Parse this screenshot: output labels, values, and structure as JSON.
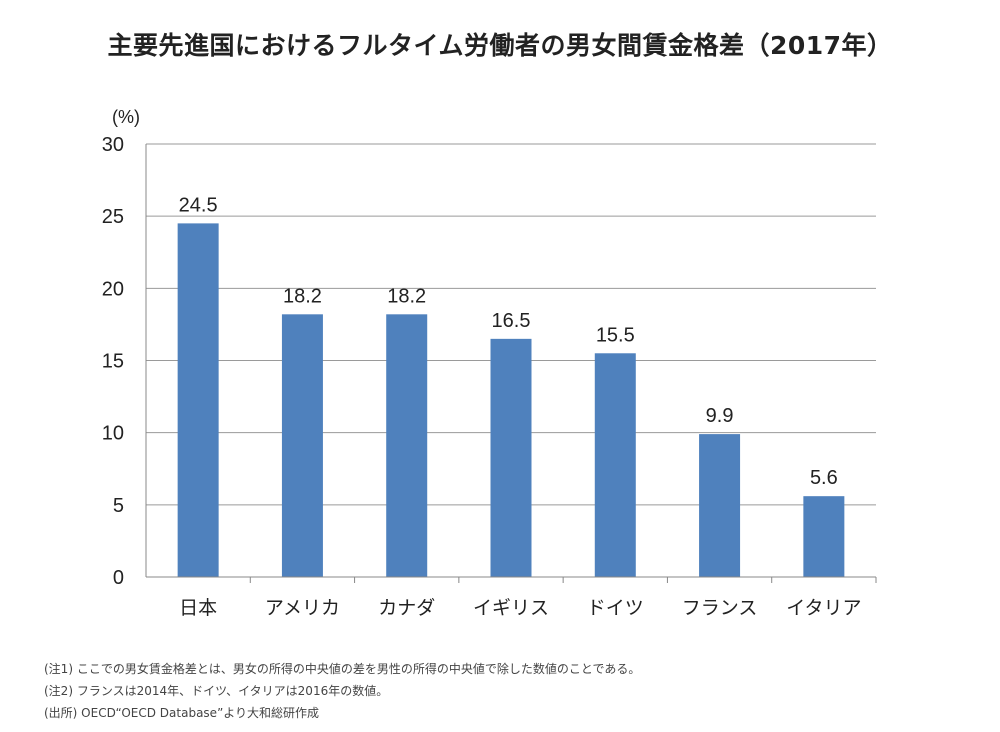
{
  "chart_data": {
    "type": "bar",
    "title": "主要先進国におけるフルタイム労働者の男女間賃金格差（2017年）",
    "ylabel": "(%)",
    "xlabel": "",
    "categories": [
      "日本",
      "アメリカ",
      "カナダ",
      "イギリス",
      "ドイツ",
      "フランス",
      "イタリア"
    ],
    "values": [
      24.5,
      18.2,
      18.2,
      16.5,
      15.5,
      9.9,
      5.6
    ],
    "value_labels": [
      "24.5",
      "18.2",
      "18.2",
      "16.5",
      "15.5",
      "9.9",
      "5.6"
    ],
    "yticks": [
      "0",
      "5",
      "10",
      "15",
      "20",
      "25",
      "30"
    ],
    "ylim": [
      0,
      30
    ],
    "grid": true,
    "legend": "none",
    "bar_color": "#4f81bd"
  },
  "notes": [
    "(注1) ここでの男女賃金格差とは、男女の所得の中央値の差を男性の所得の中央値で除した数値のことである。",
    "(注2) フランスは2014年、ドイツ、イタリアは2016年の数値。",
    "(出所) OECD“OECD Database”より大和総研作成"
  ]
}
